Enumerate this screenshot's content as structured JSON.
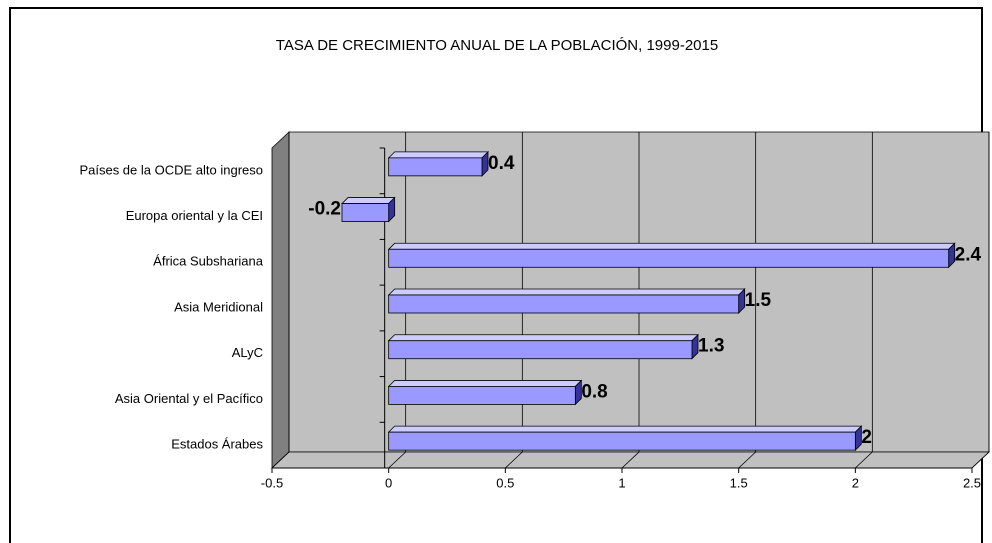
{
  "chart_data": {
    "type": "bar3d_horizontal",
    "title": "TASA DE CRECIMIENTO ANUAL DE LA POBLACIÓN, 1999-2015",
    "categories": [
      "Países de la OCDE alto ingreso",
      "Europa oriental y la CEI",
      "África Subshariana",
      "Asia Meridional",
      "ALyC",
      "Asia Oriental y el Pacífico",
      "Estados Árabes"
    ],
    "values": [
      0.4,
      -0.2,
      2.4,
      1.5,
      1.3,
      0.8,
      2
    ],
    "color": "#9999ff",
    "xlim": [
      -0.5,
      2.5
    ],
    "xticks": [
      -0.5,
      0,
      0.5,
      1,
      1.5,
      2,
      2.5
    ],
    "grid": true
  }
}
